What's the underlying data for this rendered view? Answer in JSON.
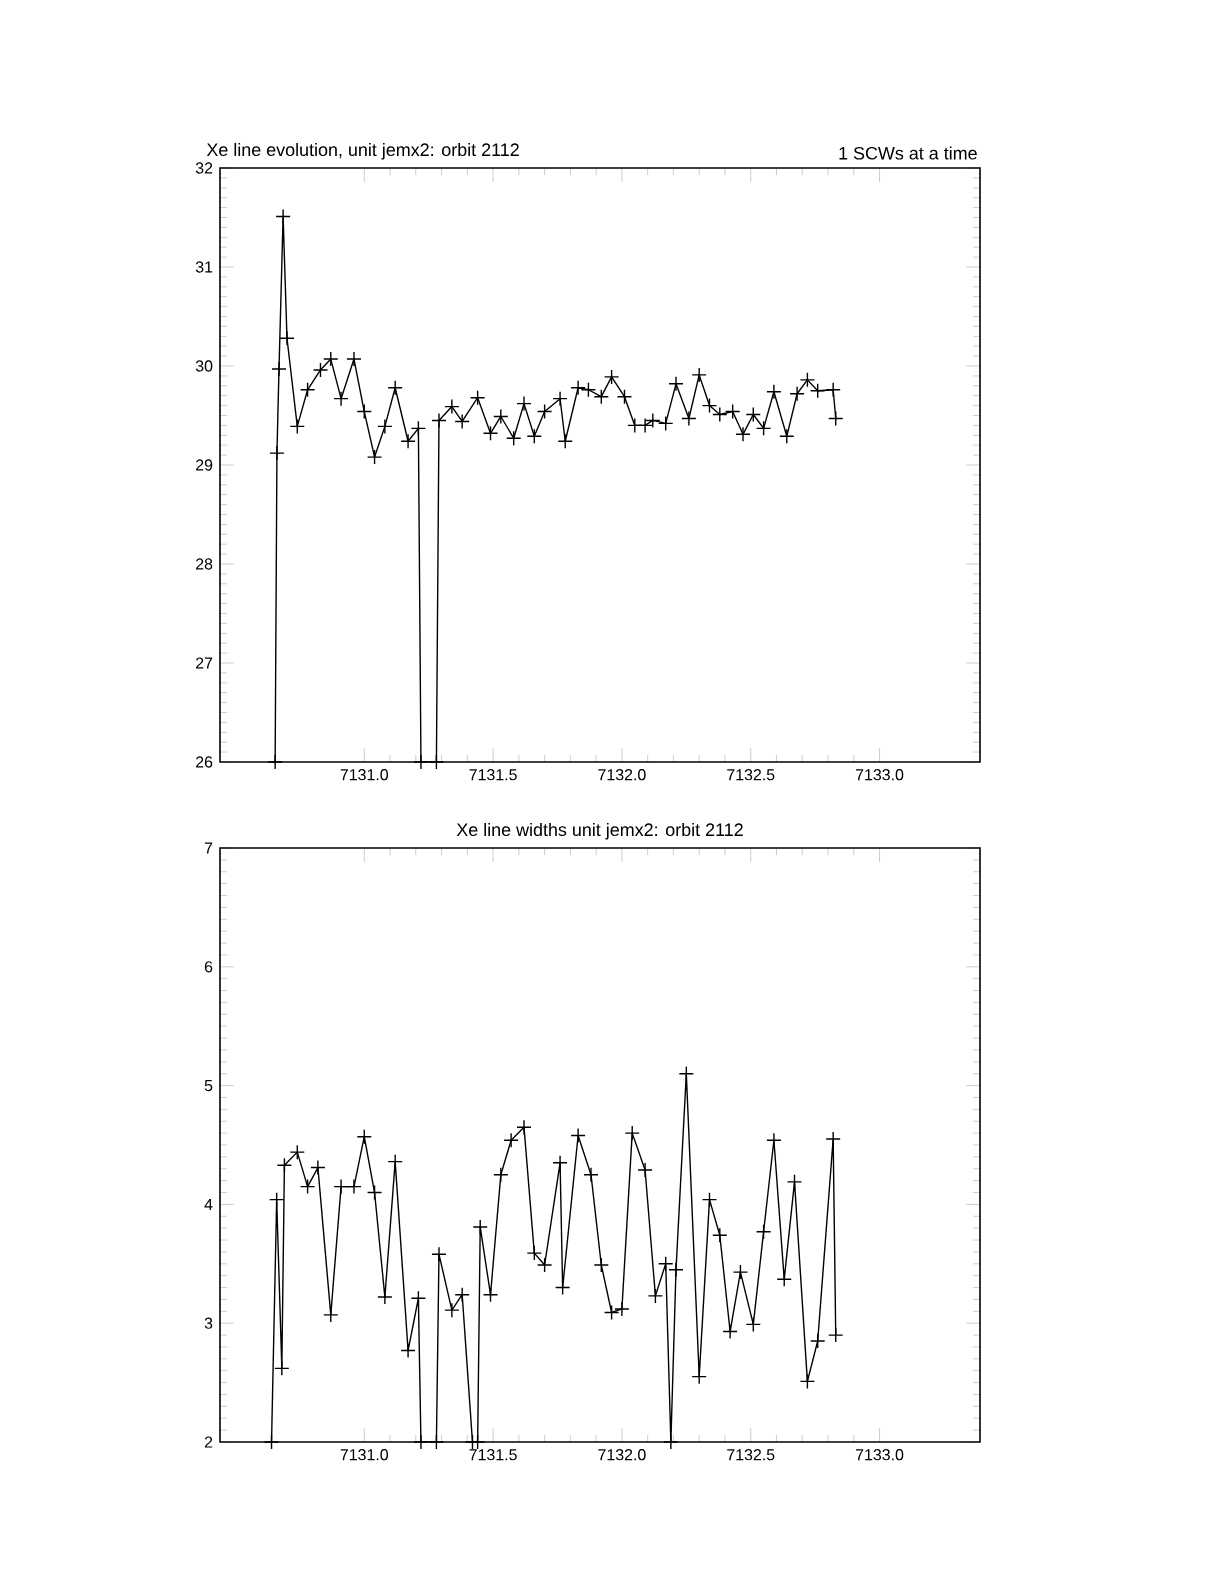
{
  "chart_data": [
    {
      "type": "line",
      "title": "Xe line evolution, unit jemx2: orbit 2112",
      "subtitle": "1 SCWs at a time",
      "color": "#000000",
      "marker": "cross",
      "x": [
        7130.654,
        7130.661,
        7130.669,
        7130.685,
        7130.7,
        7130.74,
        7130.78,
        7130.83,
        7130.87,
        7130.91,
        7130.96,
        7131.0,
        7131.04,
        7131.08,
        7131.12,
        7131.17,
        7131.21,
        7131.22,
        7131.28,
        7131.29,
        7131.34,
        7131.38,
        7131.44,
        7131.49,
        7131.53,
        7131.58,
        7131.62,
        7131.66,
        7131.7,
        7131.76,
        7131.78,
        7131.83,
        7131.87,
        7131.92,
        7131.96,
        7132.01,
        7132.05,
        7132.09,
        7132.12,
        7132.17,
        7132.21,
        7132.26,
        7132.3,
        7132.34,
        7132.38,
        7132.43,
        7132.47,
        7132.51,
        7132.55,
        7132.59,
        7132.64,
        7132.68,
        7132.72,
        7132.76,
        7132.82,
        7132.83
      ],
      "values": [
        26,
        29.12,
        29.97,
        31.51,
        30.28,
        29.39,
        29.76,
        29.96,
        30.07,
        29.67,
        30.07,
        29.54,
        29.08,
        29.39,
        29.78,
        29.24,
        29.37,
        26,
        26,
        29.45,
        29.59,
        29.44,
        29.68,
        29.32,
        29.49,
        29.27,
        29.62,
        29.29,
        29.54,
        29.67,
        29.24,
        29.78,
        29.76,
        29.69,
        29.89,
        29.69,
        29.4,
        29.4,
        29.45,
        29.42,
        29.82,
        29.47,
        29.91,
        29.6,
        29.51,
        29.54,
        29.31,
        29.51,
        29.37,
        29.74,
        29.29,
        29.72,
        29.86,
        29.75,
        29.76,
        29.47
      ],
      "xlim": [
        7130.44,
        7133.39
      ],
      "ylim": [
        26,
        32
      ],
      "xticks": [
        {
          "value": 7131.0,
          "label": "7131.0"
        },
        {
          "value": 7131.5,
          "label": "7131.5"
        },
        {
          "value": 7132.0,
          "label": "7132.0"
        },
        {
          "value": 7132.5,
          "label": "7132.5"
        },
        {
          "value": 7133.0,
          "label": "7133.0"
        }
      ],
      "yticks": [
        26,
        27,
        28,
        29,
        30,
        31,
        32
      ]
    },
    {
      "type": "line",
      "title": "Xe line widths unit jemx2: orbit 2112",
      "color": "#000000",
      "marker": "cross",
      "x": [
        7130.64,
        7130.66,
        7130.68,
        7130.69,
        7130.74,
        7130.78,
        7130.82,
        7130.87,
        7130.91,
        7130.96,
        7131.0,
        7131.04,
        7131.08,
        7131.12,
        7131.17,
        7131.21,
        7131.22,
        7131.28,
        7131.29,
        7131.34,
        7131.38,
        7131.42,
        7131.44,
        7131.45,
        7131.49,
        7131.53,
        7131.57,
        7131.62,
        7131.66,
        7131.7,
        7131.76,
        7131.77,
        7131.83,
        7131.88,
        7131.92,
        7131.96,
        7132.0,
        7132.04,
        7132.09,
        7132.13,
        7132.17,
        7132.19,
        7132.21,
        7132.25,
        7132.3,
        7132.34,
        7132.38,
        7132.42,
        7132.46,
        7132.51,
        7132.55,
        7132.59,
        7132.63,
        7132.67,
        7132.72,
        7132.76,
        7132.82,
        7132.83
      ],
      "values": [
        2.0,
        4.04,
        2.62,
        4.33,
        4.44,
        4.15,
        4.31,
        3.07,
        4.15,
        4.15,
        4.57,
        4.1,
        3.22,
        4.36,
        2.77,
        3.21,
        2.0,
        2.0,
        3.58,
        3.11,
        3.24,
        2.0,
        2.0,
        3.81,
        3.24,
        4.25,
        4.54,
        4.65,
        3.59,
        3.49,
        4.35,
        3.3,
        4.58,
        4.25,
        3.49,
        3.09,
        3.12,
        4.6,
        4.29,
        3.23,
        3.5,
        2.0,
        3.45,
        5.1,
        2.55,
        4.04,
        3.74,
        2.93,
        3.43,
        2.99,
        3.77,
        4.54,
        3.37,
        4.19,
        2.51,
        2.85,
        4.55,
        2.9
      ],
      "xlim": [
        7130.44,
        7133.39
      ],
      "ylim": [
        2,
        7
      ],
      "xticks": [
        {
          "value": 7131.0,
          "label": "7131.0"
        },
        {
          "value": 7131.5,
          "label": "7131.5"
        },
        {
          "value": 7132.0,
          "label": "7132.0"
        },
        {
          "value": 7132.5,
          "label": "7132.5"
        },
        {
          "value": 7133.0,
          "label": "7133.0"
        }
      ],
      "yticks": [
        2,
        3,
        4,
        5,
        6,
        7
      ]
    }
  ]
}
